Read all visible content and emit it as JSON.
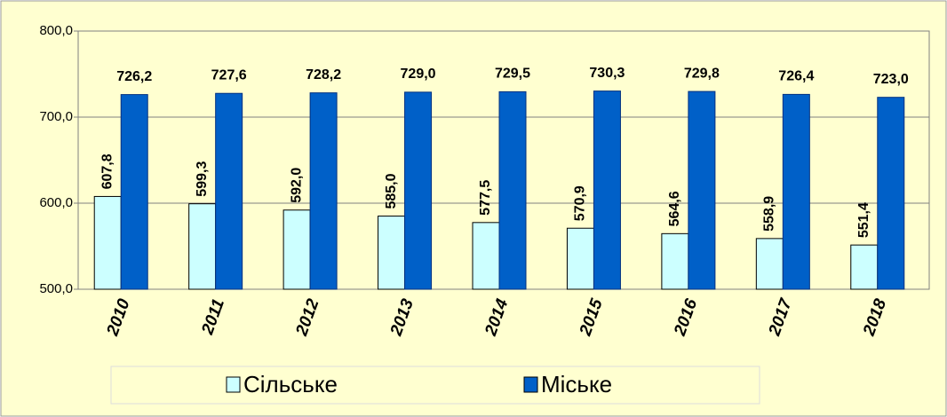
{
  "chart_data": {
    "type": "bar",
    "categories": [
      "2010",
      "2011",
      "2012",
      "2013",
      "2014",
      "2015",
      "2016",
      "2017",
      "2018"
    ],
    "series": [
      {
        "name": "Сільське",
        "color": "#ccffff",
        "values": [
          607.8,
          599.3,
          592.0,
          585.0,
          577.5,
          570.9,
          564.6,
          558.9,
          551.4
        ],
        "value_labels": [
          "607,8",
          "599,3",
          "592,0",
          "585,0",
          "577,5",
          "570,9",
          "564,6",
          "558,9",
          "551,4"
        ]
      },
      {
        "name": "Міське",
        "color": "#0060c8",
        "values": [
          726.2,
          727.6,
          728.2,
          729.0,
          729.5,
          730.3,
          729.8,
          726.4,
          723.0
        ],
        "value_labels": [
          "726,2",
          "727,6",
          "728,2",
          "729,0",
          "729,5",
          "730,3",
          "729,8",
          "726,4",
          "723,0"
        ]
      }
    ],
    "ylim": [
      500,
      800
    ],
    "yticks": [
      {
        "value": 500,
        "label": "500,0"
      },
      {
        "value": 600,
        "label": "600,0"
      },
      {
        "value": 700,
        "label": "700,0"
      },
      {
        "value": 800,
        "label": "800,0"
      }
    ],
    "grid": true,
    "legend": "bottom"
  }
}
